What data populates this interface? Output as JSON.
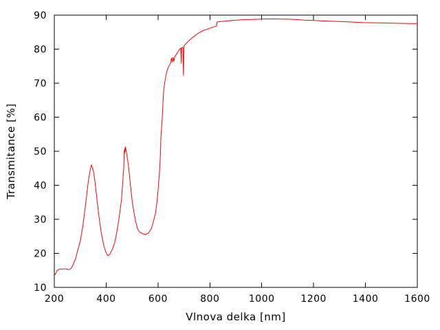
{
  "figure": {
    "background": "#ffffff",
    "frame_color": "#000000",
    "text_color": "#000000"
  },
  "chart_data": {
    "type": "line",
    "title": "",
    "xlabel": "Vlnova delka [nm]",
    "ylabel": "Transmitance [%]",
    "xlim": [
      200,
      1600
    ],
    "ylim": [
      10,
      90
    ],
    "x_ticks": [
      200,
      400,
      600,
      800,
      1000,
      1200,
      1400,
      1600
    ],
    "y_ticks": [
      10,
      20,
      30,
      40,
      50,
      60,
      70,
      80,
      90
    ],
    "grid": false,
    "legend_position": "none",
    "tick_style": "inward-mirrored",
    "series": [
      {
        "name": "transmittance",
        "color": "#ff0000",
        "points": [
          [
            200,
            13.4
          ],
          [
            205,
            14.0
          ],
          [
            211,
            15.0
          ],
          [
            218,
            15.3
          ],
          [
            230,
            15.4
          ],
          [
            245,
            15.4
          ],
          [
            258,
            15.2
          ],
          [
            265,
            15.6
          ],
          [
            272,
            16.6
          ],
          [
            282,
            18.4
          ],
          [
            290,
            20.8
          ],
          [
            300,
            23.5
          ],
          [
            310,
            28.0
          ],
          [
            320,
            34.0
          ],
          [
            330,
            40.5
          ],
          [
            337,
            44.0
          ],
          [
            343,
            46.0
          ],
          [
            350,
            44.5
          ],
          [
            357,
            41.0
          ],
          [
            365,
            35.5
          ],
          [
            372,
            31.0
          ],
          [
            380,
            26.5
          ],
          [
            390,
            22.5
          ],
          [
            398,
            20.5
          ],
          [
            406,
            19.3
          ],
          [
            415,
            19.8
          ],
          [
            424,
            21.2
          ],
          [
            433,
            23.2
          ],
          [
            441,
            26.2
          ],
          [
            450,
            30.5
          ],
          [
            459,
            35.7
          ],
          [
            464,
            41.0
          ],
          [
            468,
            45.2
          ],
          [
            469,
            48.2
          ],
          [
            470,
            50.4
          ],
          [
            471,
            49.4
          ],
          [
            472,
            50.8
          ],
          [
            473,
            49.8
          ],
          [
            474,
            51.3
          ],
          [
            476,
            50.7
          ],
          [
            478,
            49.8
          ],
          [
            482,
            47.8
          ],
          [
            486,
            45.8
          ],
          [
            494,
            39.8
          ],
          [
            502,
            34.3
          ],
          [
            513,
            29.6
          ],
          [
            521,
            27.2
          ],
          [
            530,
            26.2
          ],
          [
            540,
            25.8
          ],
          [
            553,
            25.5
          ],
          [
            563,
            26.0
          ],
          [
            574,
            27.2
          ],
          [
            582,
            29.3
          ],
          [
            590,
            31.7
          ],
          [
            596,
            35.1
          ],
          [
            600,
            38.4
          ],
          [
            605,
            43.2
          ],
          [
            609,
            48.5
          ],
          [
            611,
            53.9
          ],
          [
            616,
            59.4
          ],
          [
            619,
            64.1
          ],
          [
            622,
            68.1
          ],
          [
            627,
            70.8
          ],
          [
            633,
            73.2
          ],
          [
            640,
            74.8
          ],
          [
            648,
            75.8
          ],
          [
            652,
            77.4
          ],
          [
            655,
            76.2
          ],
          [
            658,
            77.6
          ],
          [
            661,
            76.4
          ],
          [
            665,
            77.9
          ],
          [
            670,
            78.4
          ],
          [
            676,
            79.1
          ],
          [
            682,
            79.9
          ],
          [
            688,
            80.3
          ],
          [
            690,
            75.8
          ],
          [
            691,
            80.4
          ],
          [
            696,
            80.5
          ],
          [
            698,
            72.3
          ],
          [
            700,
            80.9
          ],
          [
            706,
            81.5
          ],
          [
            712,
            81.9
          ],
          [
            718,
            82.4
          ],
          [
            725,
            82.9
          ],
          [
            732,
            83.4
          ],
          [
            740,
            83.8
          ],
          [
            750,
            84.4
          ],
          [
            762,
            85.0
          ],
          [
            775,
            85.5
          ],
          [
            790,
            85.9
          ],
          [
            805,
            86.3
          ],
          [
            818,
            86.6
          ],
          [
            826,
            86.8
          ],
          [
            828,
            88.0
          ],
          [
            840,
            88.1
          ],
          [
            855,
            88.2
          ],
          [
            875,
            88.35
          ],
          [
            900,
            88.5
          ],
          [
            930,
            88.65
          ],
          [
            960,
            88.75
          ],
          [
            1000,
            88.85
          ],
          [
            1040,
            88.9
          ],
          [
            1080,
            88.85
          ],
          [
            1110,
            88.8
          ],
          [
            1140,
            88.7
          ],
          [
            1165,
            88.5
          ],
          [
            1200,
            88.45
          ],
          [
            1232,
            88.3
          ],
          [
            1265,
            88.2
          ],
          [
            1311,
            88.1
          ],
          [
            1340,
            88.0
          ],
          [
            1361,
            87.9
          ],
          [
            1390,
            87.8
          ],
          [
            1430,
            87.75
          ],
          [
            1470,
            87.7
          ],
          [
            1520,
            87.6
          ],
          [
            1560,
            87.55
          ],
          [
            1600,
            87.5
          ]
        ]
      }
    ]
  }
}
